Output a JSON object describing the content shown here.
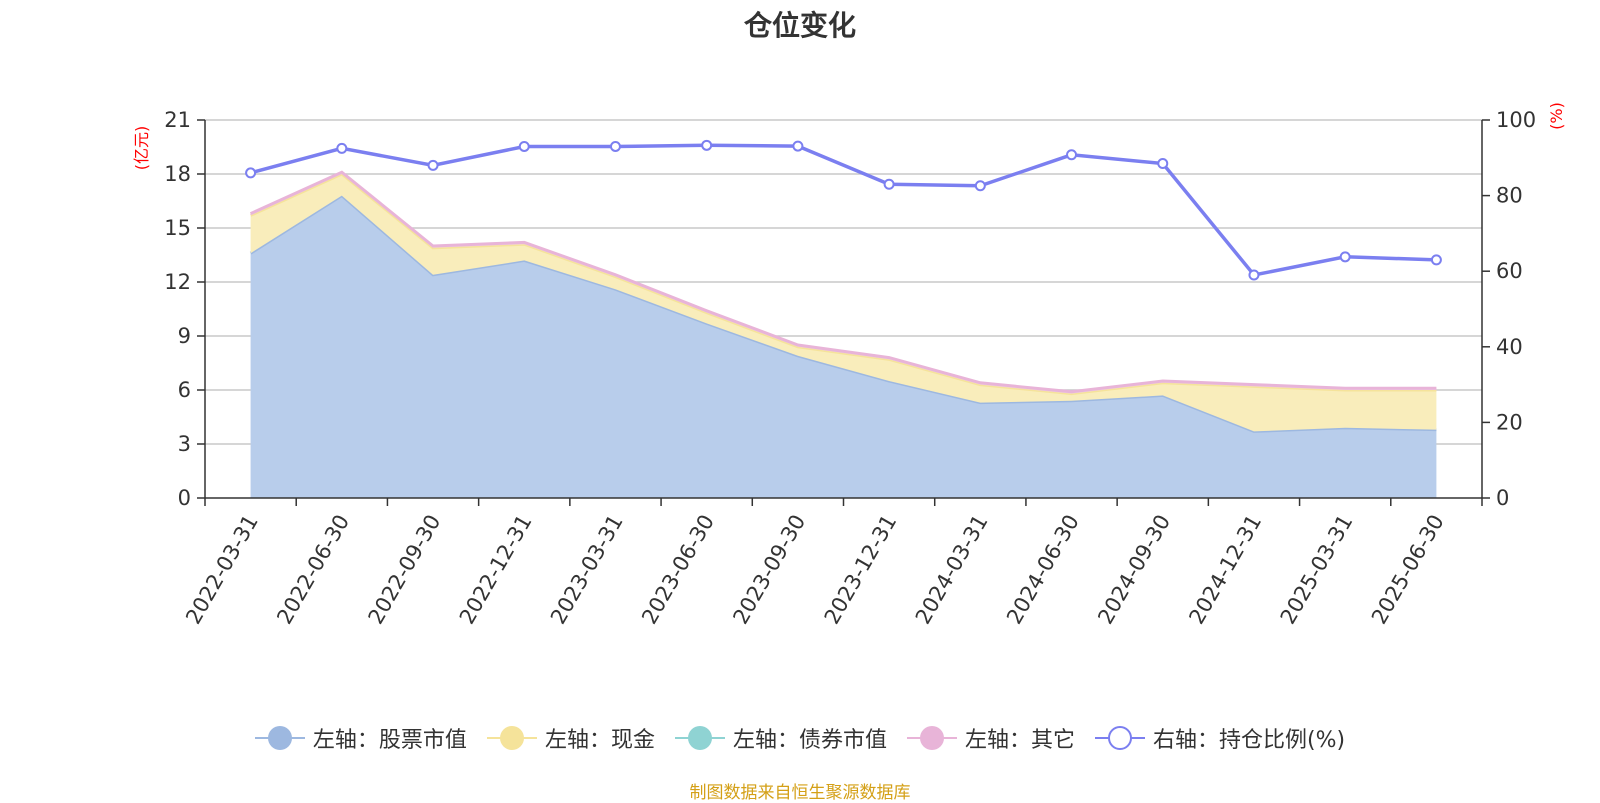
{
  "title": "仓位变化",
  "source": "制图数据来自恒生聚源数据库",
  "chart_data": {
    "type": "area",
    "title": "仓位变化",
    "x": [
      "2022-03-31",
      "2022-06-30",
      "2022-09-30",
      "2022-12-31",
      "2023-03-31",
      "2023-06-30",
      "2023-09-30",
      "2023-12-31",
      "2024-03-31",
      "2024-06-30",
      "2024-09-30",
      "2024-12-31",
      "2025-03-31",
      "2025-06-30"
    ],
    "left_axis": {
      "unit": "(亿元)",
      "ylim": [
        0,
        21
      ],
      "ticks": [
        0,
        3,
        6,
        9,
        12,
        15,
        18,
        21
      ]
    },
    "right_axis": {
      "unit": "(%)",
      "ylim": [
        0,
        100
      ],
      "ticks": [
        0,
        20,
        40,
        60,
        80,
        100
      ]
    },
    "grid": true,
    "legend_position": "bottom",
    "series": [
      {
        "name": "左轴：股票市值",
        "axis": "left",
        "kind": "area",
        "color": "#9db8e0",
        "fill": "#b8cdeb",
        "values": [
          13.6,
          16.8,
          12.4,
          13.2,
          11.6,
          9.7,
          7.9,
          6.5,
          5.3,
          5.4,
          5.7,
          3.7,
          3.9,
          3.8
        ]
      },
      {
        "name": "左轴：现金",
        "axis": "left",
        "kind": "area",
        "color": "#f5e39a",
        "fill": "#f9edbb",
        "values": [
          2.1,
          1.2,
          1.5,
          0.9,
          0.7,
          0.6,
          0.5,
          1.2,
          1.0,
          0.4,
          0.7,
          2.5,
          2.1,
          2.2
        ]
      },
      {
        "name": "左轴：债券市值",
        "axis": "left",
        "kind": "area",
        "color": "#8fd3d3",
        "fill": "#bfe6e6",
        "values": [
          0,
          0,
          0,
          0,
          0,
          0,
          0,
          0,
          0,
          0,
          0,
          0,
          0,
          0
        ]
      },
      {
        "name": "左轴：其它",
        "axis": "left",
        "kind": "area",
        "color": "#e8b4d8",
        "fill": "#f1cfe6",
        "values": [
          0.1,
          0.1,
          0.1,
          0.1,
          0.1,
          0.1,
          0.1,
          0.1,
          0.1,
          0.1,
          0.1,
          0.1,
          0.1,
          0.1
        ]
      },
      {
        "name": "右轴：持仓比例(%)",
        "axis": "right",
        "kind": "line",
        "color": "#7b7ff0",
        "values": [
          86,
          92.5,
          88,
          93,
          93,
          93.3,
          93.1,
          83,
          82.6,
          90.8,
          88.5,
          59,
          63.8,
          63
        ]
      }
    ]
  }
}
